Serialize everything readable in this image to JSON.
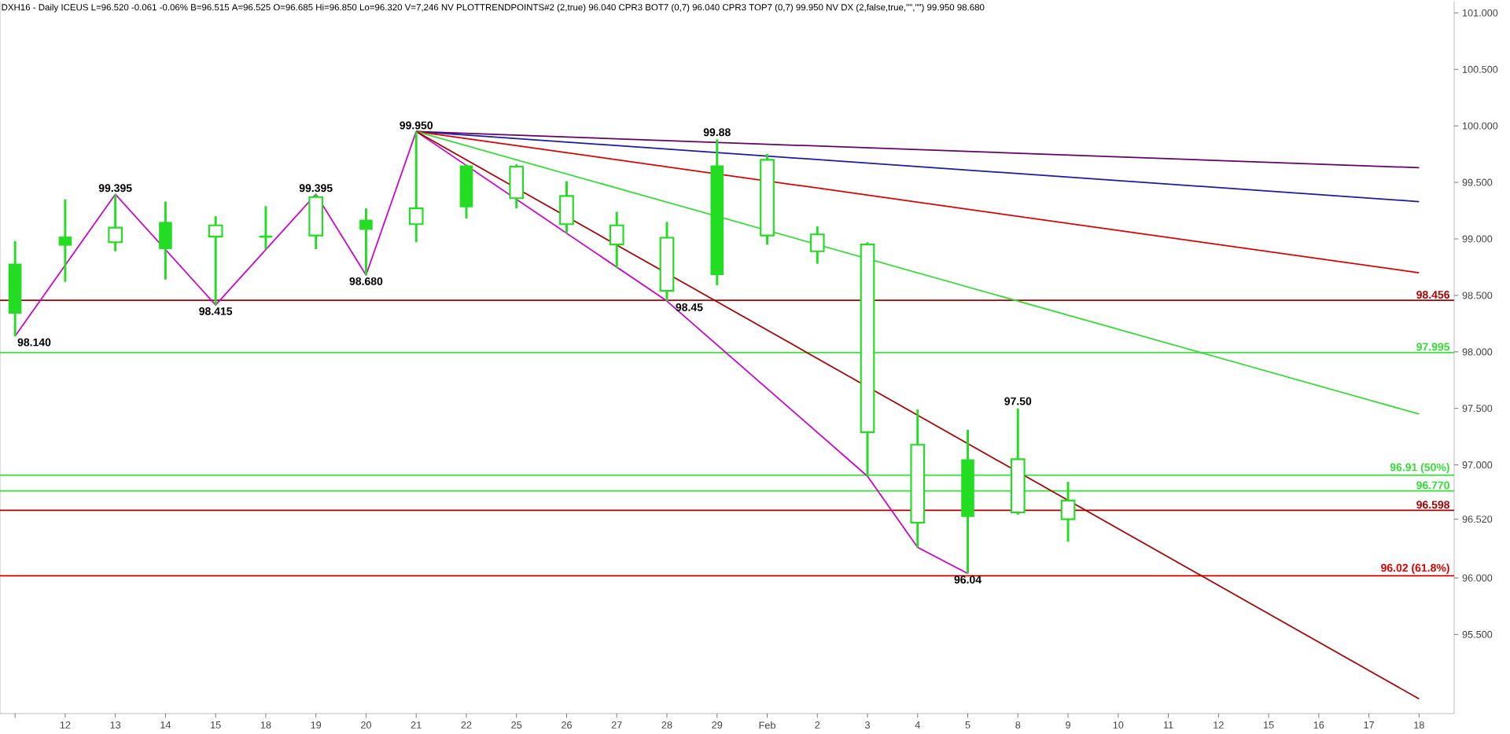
{
  "chart_data": {
    "type": "candlestick",
    "title": "DXH16 - Daily ICEUS L=96.520 -0.061 -0.06% B=96.515 A=96.525 O=96.685 Hi=96.850 Lo=96.320 V=7,246 NV PLOTTRENDPOINTS#2 (2,true) 96.040 CPR3 BOT7 (0,7) 96.040 CPR3 TOP7 (0,7) 99.950 NV DX (2,false,true,\"\",\"\") 99.950 98.680",
    "categories": [
      null,
      "12",
      "13",
      "14",
      "15",
      "18",
      "19",
      "20",
      "21",
      "22",
      "25",
      "26",
      "27",
      "28",
      "29",
      "Feb",
      "2",
      "3",
      "4",
      "5",
      "8",
      "9",
      "10",
      "11",
      "12",
      "15",
      "16",
      "17",
      "18"
    ],
    "color": "#22dd22",
    "ohlc": [
      [
        98.34,
        98.98,
        98.14,
        98.78
      ],
      [
        98.94,
        99.35,
        98.62,
        99.02
      ],
      [
        99.1,
        99.395,
        98.89,
        98.97
      ],
      [
        98.91,
        99.33,
        98.64,
        99.15
      ],
      [
        99.12,
        99.2,
        98.415,
        99.02
      ],
      [
        99.02,
        99.29,
        98.91,
        99.02
      ],
      [
        99.37,
        99.395,
        98.91,
        99.03
      ],
      [
        99.08,
        99.27,
        98.68,
        99.17
      ],
      [
        99.27,
        99.95,
        98.97,
        99.13
      ],
      [
        99.28,
        99.66,
        99.18,
        99.65
      ],
      [
        99.64,
        99.66,
        99.27,
        99.36
      ],
      [
        99.38,
        99.51,
        99.05,
        99.13
      ],
      [
        99.12,
        99.24,
        98.74,
        98.95
      ],
      [
        99.01,
        99.15,
        98.45,
        98.54
      ],
      [
        98.68,
        99.88,
        98.59,
        99.65
      ],
      [
        99.7,
        99.75,
        98.95,
        99.03
      ],
      [
        99.04,
        99.11,
        98.78,
        98.89
      ],
      [
        98.95,
        98.97,
        96.9,
        97.29
      ],
      [
        97.18,
        97.49,
        96.27,
        96.49
      ],
      [
        96.54,
        97.31,
        96.04,
        97.05
      ],
      [
        97.05,
        97.5,
        96.56,
        96.58
      ],
      [
        96.685,
        96.85,
        96.32,
        96.52
      ],
      null,
      null,
      null,
      null,
      null,
      null,
      null
    ],
    "series": [
      {
        "type": "line",
        "color": "#cc00cc",
        "values": [
          98.14,
          null,
          99.395,
          null,
          98.415,
          null,
          99.395,
          98.68,
          99.95,
          null,
          null,
          null,
          null,
          98.45,
          null,
          null,
          null,
          96.9,
          96.27,
          96.04,
          null,
          null,
          null,
          null,
          null,
          null,
          null,
          null,
          null
        ],
        "value_labels": [
          "98.140",
          null,
          "99.395",
          null,
          "98.415",
          null,
          "99.395",
          "98.680",
          "99.950",
          null,
          null,
          null,
          null,
          "98.45",
          null,
          null,
          null,
          null,
          null,
          "96.04",
          null,
          null,
          null,
          null,
          null,
          null,
          null,
          null,
          null
        ]
      },
      {
        "type": "line",
        "color": "#660066",
        "values": [
          null,
          null,
          null,
          null,
          null,
          null,
          null,
          null,
          99.95,
          null,
          null,
          null,
          null,
          null,
          null,
          null,
          null,
          null,
          null,
          null,
          null,
          null,
          null,
          null,
          null,
          null,
          null,
          null,
          99.63
        ]
      },
      {
        "type": "line",
        "color": "#1a1aa8",
        "values": [
          null,
          null,
          null,
          null,
          null,
          null,
          null,
          null,
          99.95,
          null,
          null,
          null,
          null,
          null,
          null,
          null,
          null,
          null,
          null,
          null,
          null,
          null,
          null,
          null,
          null,
          null,
          null,
          null,
          99.33
        ]
      },
      {
        "type": "line",
        "color": "#dd0000",
        "values": [
          null,
          null,
          null,
          null,
          null,
          null,
          null,
          null,
          99.95,
          null,
          null,
          null,
          null,
          null,
          null,
          null,
          null,
          null,
          null,
          null,
          null,
          null,
          null,
          null,
          null,
          null,
          null,
          null,
          98.7
        ]
      },
      {
        "type": "line",
        "color": "#33dd33",
        "values": [
          null,
          null,
          null,
          null,
          null,
          null,
          null,
          null,
          99.95,
          null,
          null,
          null,
          null,
          null,
          null,
          null,
          null,
          null,
          null,
          null,
          null,
          null,
          null,
          null,
          null,
          null,
          null,
          null,
          97.45
        ]
      },
      {
        "type": "line",
        "color": "#aa0000",
        "values": [
          null,
          null,
          null,
          null,
          null,
          null,
          null,
          null,
          99.95,
          null,
          null,
          null,
          null,
          null,
          null,
          null,
          null,
          null,
          null,
          null,
          null,
          null,
          null,
          null,
          null,
          null,
          null,
          null,
          94.93
        ]
      }
    ],
    "annotations": [
      {
        "text": "99.88",
        "x": "29",
        "y": 99.88
      },
      {
        "text": "97.50",
        "x": "8",
        "y": 97.5
      }
    ],
    "ref_lines": [
      {
        "axis": "y",
        "value": 98.456,
        "label": "98.456",
        "color": "#aa0000"
      },
      {
        "axis": "y",
        "value": 97.995,
        "label": "97.995",
        "color": "#33dd33"
      },
      {
        "axis": "y",
        "value": 96.91,
        "label": "96.91 (50%)",
        "color": "#33dd33"
      },
      {
        "axis": "y",
        "value": 96.77,
        "label": "96.770",
        "color": "#33dd33"
      },
      {
        "axis": "y",
        "value": 96.598,
        "label": "96.598",
        "color": "#aa0000"
      },
      {
        "axis": "y",
        "value": 96.02,
        "label": "96.02 (61.8%)",
        "color": "#dd0000"
      }
    ],
    "ylim": [
      94.8,
      101.1
    ],
    "yticks": [
      {
        "value": 95.5,
        "label": "95.500"
      },
      {
        "value": 96.0,
        "label": "96.000"
      },
      {
        "value": 96.52,
        "label": "96.520"
      },
      {
        "value": 97.0,
        "label": "97.000"
      },
      {
        "value": 97.5,
        "label": "97.500"
      },
      {
        "value": 98.0,
        "label": "98.000"
      },
      {
        "value": 98.5,
        "label": "98.500"
      },
      {
        "value": 99.0,
        "label": "99.000"
      },
      {
        "value": 99.5,
        "label": "99.500"
      },
      {
        "value": 100.0,
        "label": "100.000"
      },
      {
        "value": 100.5,
        "label": "100.500"
      },
      {
        "value": 101.0,
        "label": "101.000"
      }
    ]
  }
}
